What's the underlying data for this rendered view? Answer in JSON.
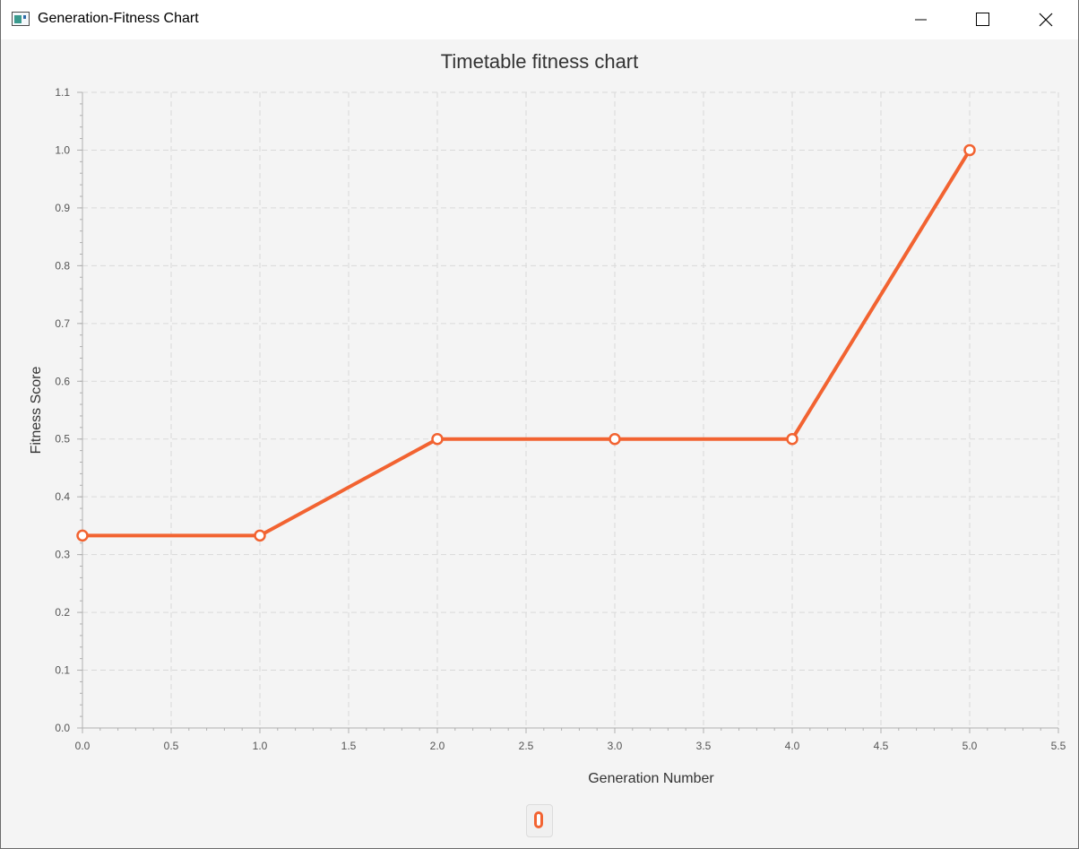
{
  "window": {
    "title": "Generation-Fitness Chart"
  },
  "chart_data": {
    "type": "line",
    "title": "Timetable fitness chart",
    "xlabel": "Generation Number",
    "ylabel": "Fitness Score",
    "xlim": [
      0,
      5.5
    ],
    "ylim": [
      0,
      1.1
    ],
    "x_ticks": [
      "0.0",
      "0.5",
      "1.0",
      "1.5",
      "2.0",
      "2.5",
      "3.0",
      "3.5",
      "4.0",
      "4.5",
      "5.0",
      "5.5"
    ],
    "y_ticks": [
      "0.0",
      "0.1",
      "0.2",
      "0.3",
      "0.4",
      "0.5",
      "0.6",
      "0.7",
      "0.8",
      "0.9",
      "1.0",
      "1.1"
    ],
    "grid": true,
    "legend_position": "bottom",
    "series": [
      {
        "name": "0",
        "color": "#f26331",
        "x": [
          0,
          1,
          2,
          3,
          4,
          5
        ],
        "y": [
          0.333,
          0.333,
          0.5,
          0.5,
          0.5,
          1.0
        ]
      }
    ]
  },
  "colors": {
    "series_line": "#f26331",
    "grid": "#d9d9d9",
    "background": "#f4f4f4"
  }
}
